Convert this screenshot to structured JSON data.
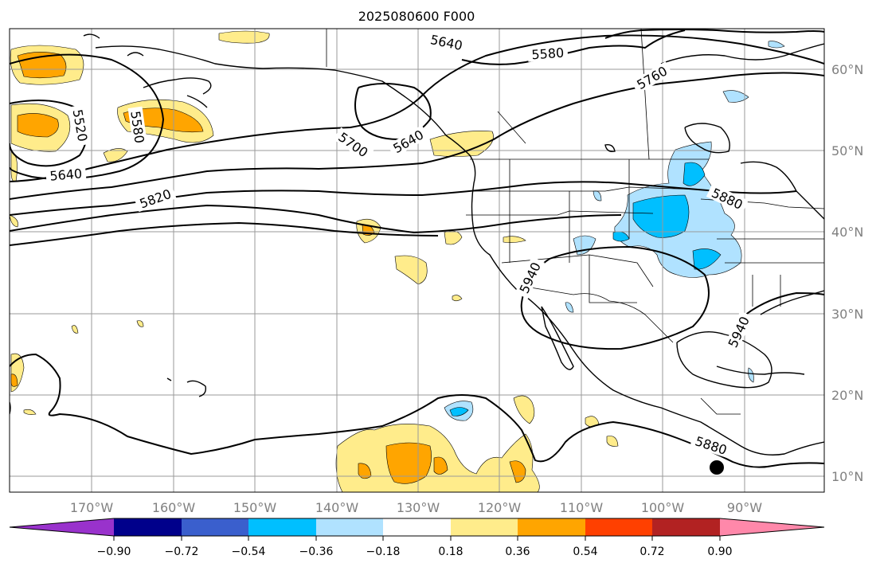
{
  "title": "2025080600 F000",
  "lon_labels": [
    "170°W",
    "160°W",
    "150°W",
    "140°W",
    "130°W",
    "120°W",
    "110°W",
    "100°W",
    "90°W"
  ],
  "lat_labels": [
    "60°N",
    "50°N",
    "40°N",
    "30°N",
    "20°N",
    "10°N"
  ],
  "contour_labels": [
    "5640",
    "5580",
    "5760",
    "5520",
    "5580",
    "5640",
    "5700",
    "5640",
    "5820",
    "5880",
    "5940",
    "5940",
    "5880"
  ],
  "colorbar": {
    "ticks": [
      "−0.90",
      "−0.72",
      "−0.54",
      "−0.36",
      "−0.18",
      "0.18",
      "0.36",
      "0.54",
      "0.72",
      "0.90"
    ],
    "colors": [
      "#9932cc",
      "#00008b",
      "#3a5fcd",
      "#00bfff",
      "#b0e2ff",
      "#ffffff",
      "#ffec8b",
      "#ffa500",
      "#ff4000",
      "#b22222",
      "#ff88aa"
    ]
  },
  "colors": {
    "pos1": "#ffec8b",
    "pos2": "#ffa500",
    "neg1": "#b0e2ff",
    "neg2": "#00bfff",
    "grid": "#9a9a9a",
    "tick_label": "#808080"
  },
  "marker": "black-dot"
}
